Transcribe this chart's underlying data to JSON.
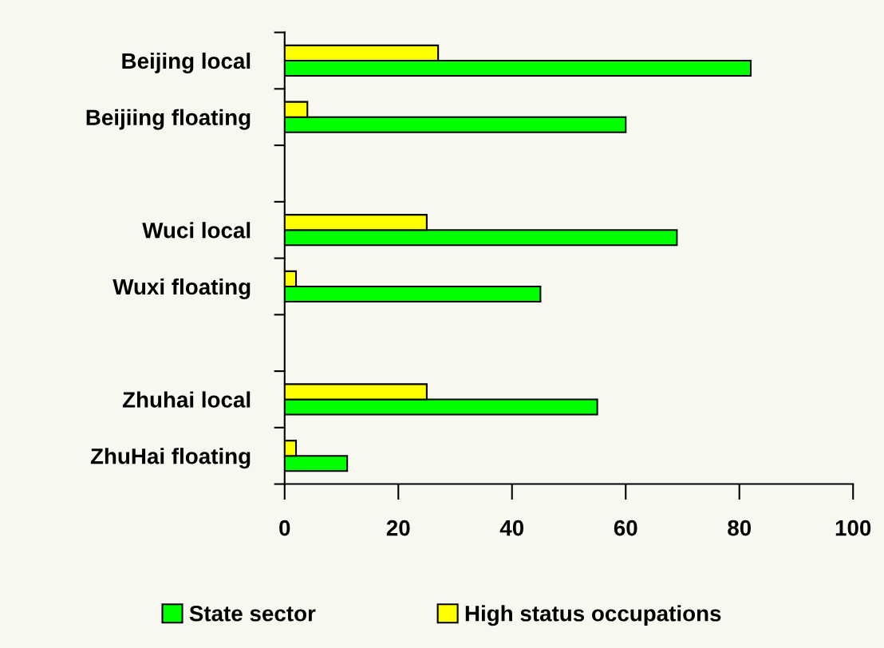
{
  "chart_data": {
    "type": "bar",
    "orientation": "horizontal",
    "categories": [
      "Beijing local",
      "Beijiing floating",
      null,
      "Wuci local",
      "Wuxi floating",
      null,
      "Zhuhai local",
      "ZhuHai floating"
    ],
    "series": [
      {
        "name": "State sector",
        "color": "#00ff00",
        "values": [
          82,
          60,
          null,
          69,
          45,
          null,
          55,
          11
        ]
      },
      {
        "name": "High status occupations",
        "color": "#ffff00",
        "values": [
          27,
          4,
          null,
          25,
          2,
          null,
          25,
          2
        ]
      }
    ],
    "xlim": [
      0,
      100
    ],
    "xticks": [
      0,
      20,
      40,
      60,
      80,
      100
    ],
    "grid": false,
    "legend": "bottom"
  }
}
